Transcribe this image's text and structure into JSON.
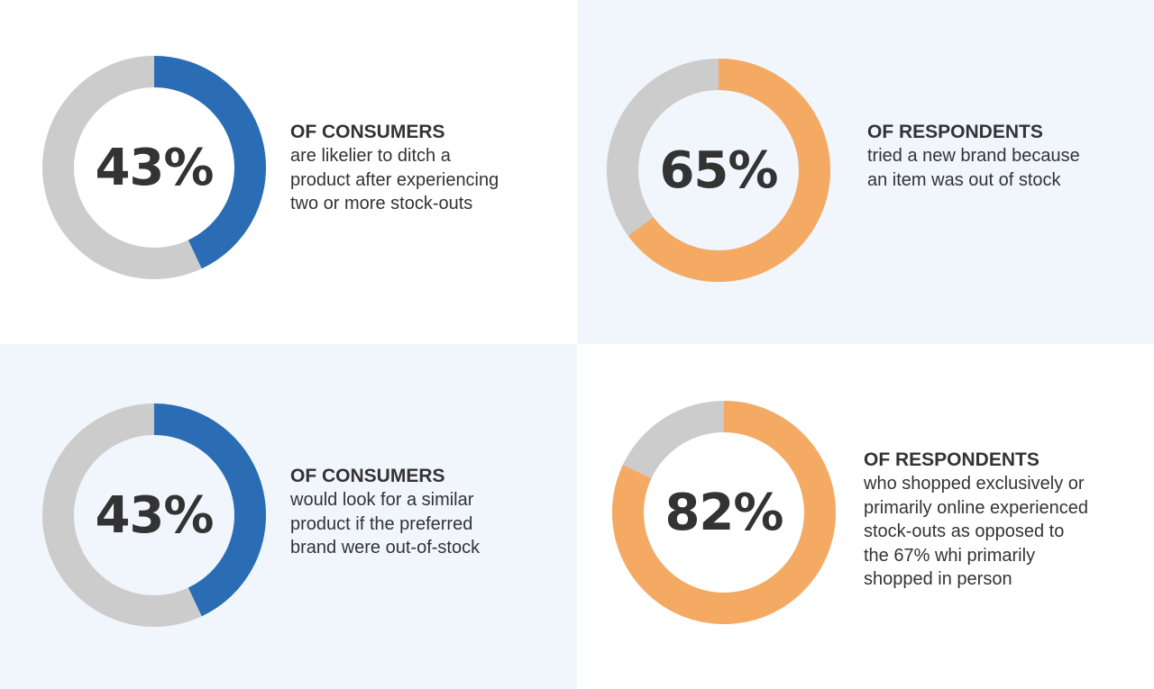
{
  "colors": {
    "blue": "#2a6db4",
    "orange": "#f5aa64",
    "track": "#cccccc",
    "panel_white": "#ffffff",
    "panel_tint": "#f1f6fd",
    "text": "#333333"
  },
  "chart_data": [
    {
      "type": "pie",
      "variant": "donut",
      "value_percent": 43,
      "label": "43%",
      "color": "#2a6db4",
      "remainder_color": "#cccccc",
      "heading": "OF CONSUMERS",
      "lines": [
        "are likelier to ditch a",
        "product after experiencing",
        "two or more stock-outs"
      ]
    },
    {
      "type": "pie",
      "variant": "donut",
      "value_percent": 65,
      "label": "65%",
      "color": "#f5aa64",
      "remainder_color": "#cccccc",
      "heading": "OF RESPONDENTS",
      "lines": [
        "tried a new brand because",
        "an item was out of stock"
      ]
    },
    {
      "type": "pie",
      "variant": "donut",
      "value_percent": 43,
      "label": "43%",
      "color": "#2a6db4",
      "remainder_color": "#cccccc",
      "heading": "OF CONSUMERS",
      "lines": [
        "would look for a similar",
        "product if the preferred",
        "brand were out-of-stock"
      ]
    },
    {
      "type": "pie",
      "variant": "donut",
      "value_percent": 82,
      "label": "82%",
      "color": "#f5aa64",
      "remainder_color": "#cccccc",
      "heading": "OF RESPONDENTS",
      "lines": [
        "who shopped exclusively or",
        "primarily online experienced",
        "stock-outs as opposed to",
        "the 67% whi primarily",
        "shopped in person"
      ]
    }
  ]
}
